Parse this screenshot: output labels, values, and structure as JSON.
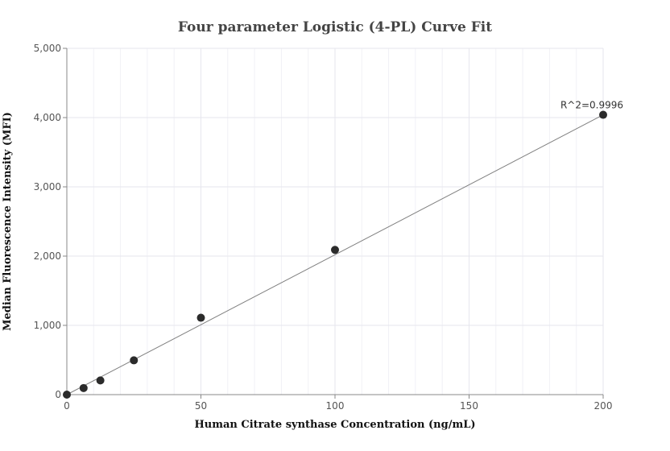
{
  "chart_data": {
    "type": "scatter",
    "title": "Four parameter Logistic (4-PL) Curve Fit",
    "xlabel": "Human Citrate synthase Concentration (ng/mL)",
    "ylabel": "Median Fluorescence Intensity (MFI)",
    "xlim": [
      0,
      200
    ],
    "ylim": [
      0,
      5000
    ],
    "x_ticks": [
      0,
      50,
      100,
      150,
      200
    ],
    "y_ticks": [
      0,
      1000,
      2000,
      3000,
      4000,
      5000
    ],
    "x_tick_labels": [
      "0",
      "50",
      "100",
      "150",
      "200"
    ],
    "y_tick_labels": [
      "0",
      "1,000",
      "2,000",
      "3,000",
      "4,000",
      "5,000"
    ],
    "grid": true,
    "points": [
      {
        "x": 0,
        "y": 0
      },
      {
        "x": 6.25,
        "y": 95
      },
      {
        "x": 12.5,
        "y": 205
      },
      {
        "x": 25,
        "y": 495
      },
      {
        "x": 50,
        "y": 1110
      },
      {
        "x": 100,
        "y": 2090
      },
      {
        "x": 200,
        "y": 4040
      }
    ],
    "fit_line": {
      "x": [
        0,
        200
      ],
      "y": [
        0,
        4040
      ]
    },
    "annotation": "R^2=0.9996",
    "colors": {
      "points": "#2b2b2b",
      "fit_line": "#808080",
      "grid": "#e6e6ee"
    }
  }
}
